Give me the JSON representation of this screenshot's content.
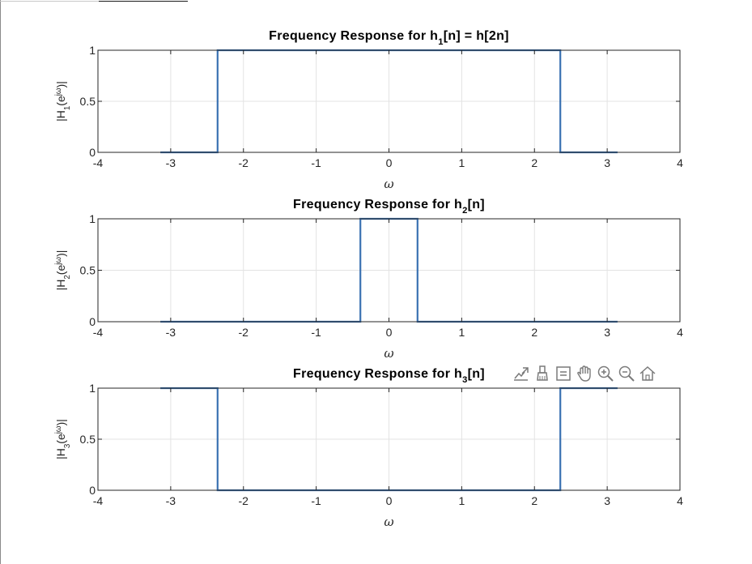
{
  "toolbar": {
    "icons": [
      "export-icon",
      "brush-icon",
      "datatip-icon",
      "pan-icon",
      "zoom-in-icon",
      "zoom-out-icon",
      "home-icon"
    ]
  },
  "chart_data": [
    {
      "type": "line",
      "title": "Frequency Response for h₁[n] = h[2n]",
      "xlabel": "ω",
      "ylabel": "|H₁(e^{jω})|",
      "xlim": [
        -4,
        4
      ],
      "ylim": [
        0,
        1
      ],
      "xticks": [
        -4,
        -3,
        -2,
        -1,
        0,
        1,
        2,
        3,
        4
      ],
      "yticks": [
        0,
        0.5,
        1
      ],
      "grid": true,
      "color": "#3b72b2",
      "x": [
        -3.1416,
        -2.356,
        -2.356,
        2.356,
        2.356,
        3.1416
      ],
      "y": [
        0,
        0,
        1,
        1,
        0,
        0
      ]
    },
    {
      "type": "line",
      "title": "Frequency Response for h₂[n]",
      "xlabel": "ω",
      "ylabel": "|H₂(e^{jω})|",
      "xlim": [
        -4,
        4
      ],
      "ylim": [
        0,
        1
      ],
      "xticks": [
        -4,
        -3,
        -2,
        -1,
        0,
        1,
        2,
        3,
        4
      ],
      "yticks": [
        0,
        0.5,
        1
      ],
      "grid": true,
      "color": "#3b72b2",
      "x": [
        -3.1416,
        -0.393,
        -0.393,
        0.393,
        0.393,
        3.1416
      ],
      "y": [
        0,
        0,
        1,
        1,
        0,
        0
      ]
    },
    {
      "type": "line",
      "title": "Frequency Response for h₃[n]",
      "xlabel": "ω",
      "ylabel": "|H₃(e^{jω})|",
      "xlim": [
        -4,
        4
      ],
      "ylim": [
        0,
        1
      ],
      "xticks": [
        -4,
        -3,
        -2,
        -1,
        0,
        1,
        2,
        3,
        4
      ],
      "yticks": [
        0,
        0.5,
        1
      ],
      "grid": true,
      "color": "#3b72b2",
      "x": [
        -3.1416,
        -2.356,
        -2.356,
        2.356,
        2.356,
        3.1416
      ],
      "y": [
        1,
        1,
        0,
        0,
        1,
        1
      ]
    }
  ]
}
